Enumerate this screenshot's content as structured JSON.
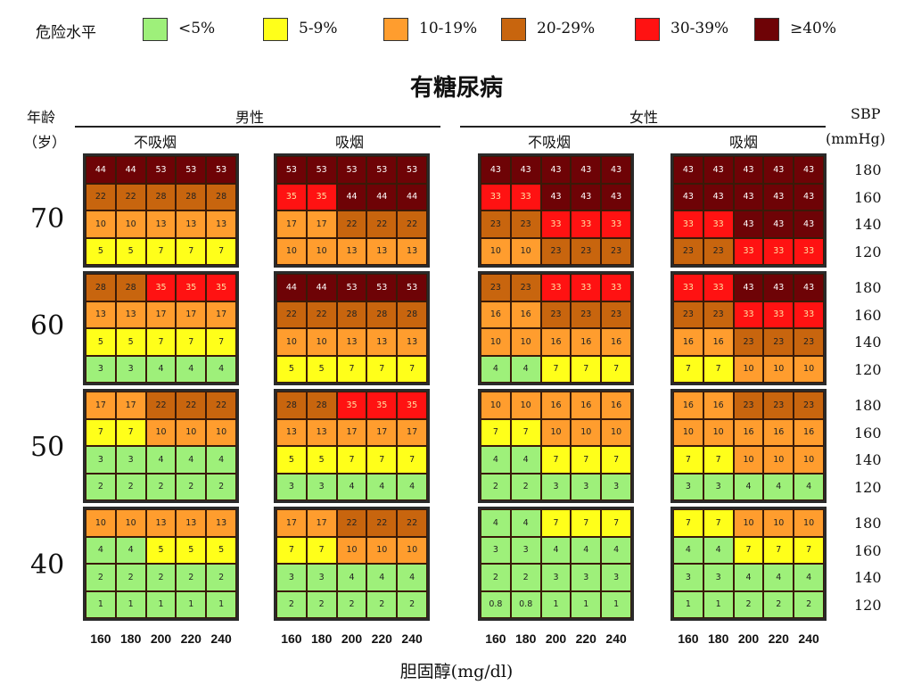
{
  "legend": {
    "title": "危险水平",
    "items": [
      {
        "label": "<5%",
        "color": "#9ef07a"
      },
      {
        "label": "5-9%",
        "color": "#ffff1a"
      },
      {
        "label": "10-19%",
        "color": "#ff9d2e"
      },
      {
        "label": "20-29%",
        "color": "#c8650e"
      },
      {
        "label": "30-39%",
        "color": "#ff1212"
      },
      {
        "label": "≥40%",
        "color": "#6e0306"
      }
    ]
  },
  "header": {
    "title": "有糖尿病",
    "age_label_1": "年龄",
    "age_label_2": "（岁）",
    "male": "男性",
    "female": "女性",
    "non_smoker": "不吸烟",
    "smoker": "吸烟",
    "sbp_label_1": "SBP",
    "sbp_label_2": "(mmHg)"
  },
  "xlabel": "胆固醇(mg/dl)",
  "chart_data": {
    "type": "heatmap",
    "title": "有糖尿病",
    "x": [
      160,
      180,
      200,
      220,
      240
    ],
    "xlabel": "胆固醇(mg/dl)",
    "ylabel": "SBP (mmHg)",
    "sbp": [
      180,
      160,
      140,
      120
    ],
    "ages": [
      70,
      60,
      50,
      40
    ],
    "groups": [
      {
        "sex": "男性",
        "smoking": "不吸烟",
        "values": [
          [
            [
              44,
              44,
              53,
              53,
              53
            ],
            [
              22,
              22,
              28,
              28,
              28
            ],
            [
              10,
              10,
              13,
              13,
              13
            ],
            [
              5,
              5,
              7,
              7,
              7
            ]
          ],
          [
            [
              28,
              28,
              35,
              35,
              35
            ],
            [
              13,
              13,
              17,
              17,
              17
            ],
            [
              5,
              5,
              7,
              7,
              7
            ],
            [
              3,
              3,
              4,
              4,
              4
            ]
          ],
          [
            [
              17,
              17,
              22,
              22,
              22
            ],
            [
              7,
              7,
              10,
              10,
              10
            ],
            [
              3,
              3,
              4,
              4,
              4
            ],
            [
              2,
              2,
              2,
              2,
              2
            ]
          ],
          [
            [
              10,
              10,
              13,
              13,
              13
            ],
            [
              4,
              4,
              5,
              5,
              5
            ],
            [
              2,
              2,
              2,
              2,
              2
            ],
            [
              1,
              1,
              1,
              1,
              1
            ]
          ]
        ]
      },
      {
        "sex": "男性",
        "smoking": "吸烟",
        "values": [
          [
            [
              53,
              53,
              53,
              53,
              53
            ],
            [
              35,
              35,
              44,
              44,
              44
            ],
            [
              17,
              17,
              22,
              22,
              22
            ],
            [
              10,
              10,
              13,
              13,
              13
            ]
          ],
          [
            [
              44,
              44,
              53,
              53,
              53
            ],
            [
              22,
              22,
              28,
              28,
              28
            ],
            [
              10,
              10,
              13,
              13,
              13
            ],
            [
              5,
              5,
              7,
              7,
              7
            ]
          ],
          [
            [
              28,
              28,
              35,
              35,
              35
            ],
            [
              13,
              13,
              17,
              17,
              17
            ],
            [
              5,
              5,
              7,
              7,
              7
            ],
            [
              3,
              3,
              4,
              4,
              4
            ]
          ],
          [
            [
              17,
              17,
              22,
              22,
              22
            ],
            [
              7,
              7,
              10,
              10,
              10
            ],
            [
              3,
              3,
              4,
              4,
              4
            ],
            [
              2,
              2,
              2,
              2,
              2
            ]
          ]
        ]
      },
      {
        "sex": "女性",
        "smoking": "不吸烟",
        "values": [
          [
            [
              43,
              43,
              43,
              43,
              43
            ],
            [
              33,
              33,
              43,
              43,
              43
            ],
            [
              23,
              23,
              33,
              33,
              33
            ],
            [
              10,
              10,
              23,
              23,
              23
            ]
          ],
          [
            [
              23,
              23,
              33,
              33,
              33
            ],
            [
              16,
              16,
              23,
              23,
              23
            ],
            [
              10,
              10,
              16,
              16,
              16
            ],
            [
              4,
              4,
              7,
              7,
              7
            ]
          ],
          [
            [
              10,
              10,
              16,
              16,
              16
            ],
            [
              7,
              7,
              10,
              10,
              10
            ],
            [
              4,
              4,
              7,
              7,
              7
            ],
            [
              2,
              2,
              3,
              3,
              3
            ]
          ],
          [
            [
              4,
              4,
              7,
              7,
              7
            ],
            [
              3,
              3,
              4,
              4,
              4
            ],
            [
              2,
              2,
              3,
              3,
              3
            ],
            [
              "0.8",
              "0.8",
              1,
              1,
              1
            ]
          ]
        ]
      },
      {
        "sex": "女性",
        "smoking": "吸烟",
        "values": [
          [
            [
              43,
              43,
              43,
              43,
              43
            ],
            [
              43,
              43,
              43,
              43,
              43
            ],
            [
              33,
              33,
              43,
              43,
              43
            ],
            [
              23,
              23,
              33,
              33,
              33
            ]
          ],
          [
            [
              33,
              33,
              43,
              43,
              43
            ],
            [
              23,
              23,
              33,
              33,
              33
            ],
            [
              16,
              16,
              23,
              23,
              23
            ],
            [
              7,
              7,
              10,
              10,
              10
            ]
          ],
          [
            [
              16,
              16,
              23,
              23,
              23
            ],
            [
              10,
              10,
              16,
              16,
              16
            ],
            [
              7,
              7,
              10,
              10,
              10
            ],
            [
              3,
              3,
              4,
              4,
              4
            ]
          ],
          [
            [
              7,
              7,
              10,
              10,
              10
            ],
            [
              4,
              4,
              7,
              7,
              7
            ],
            [
              3,
              3,
              4,
              4,
              4
            ],
            [
              1,
              1,
              2,
              2,
              2
            ]
          ]
        ]
      }
    ]
  }
}
